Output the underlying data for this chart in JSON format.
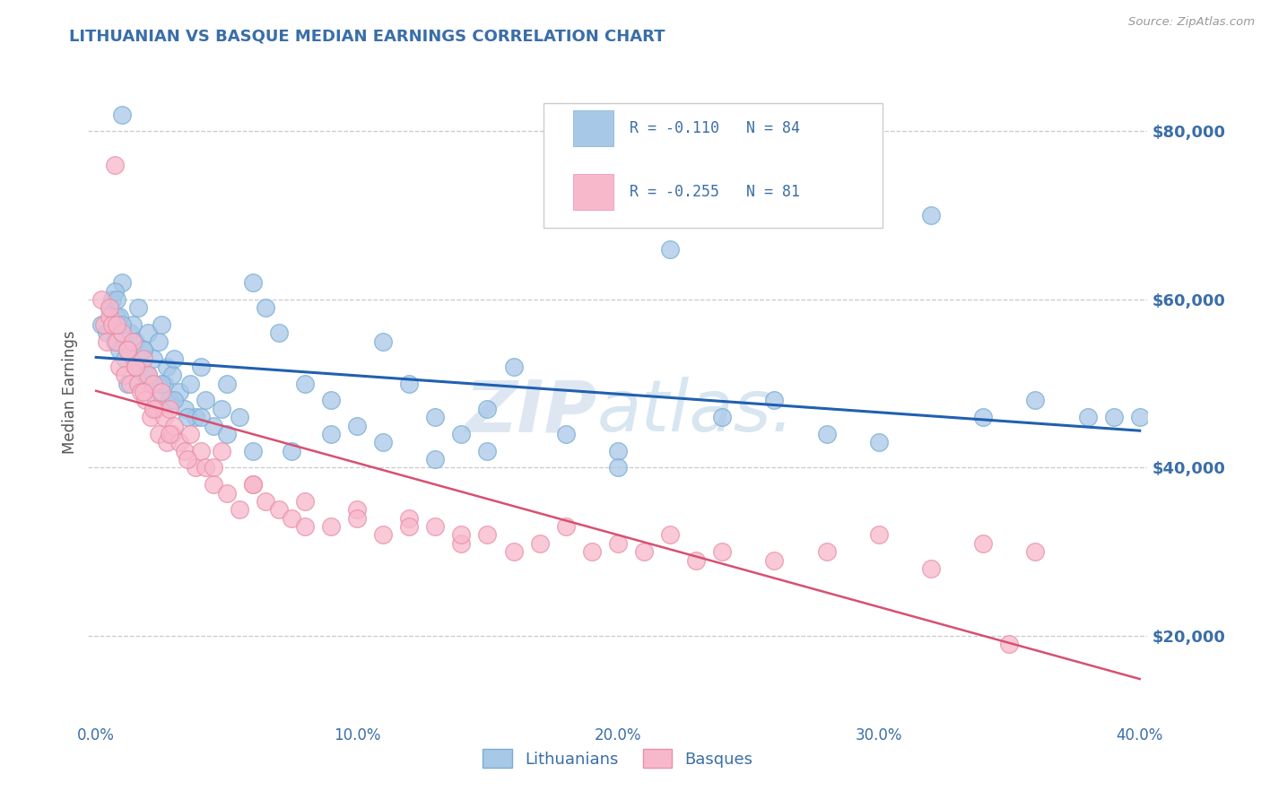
{
  "title": "LITHUANIAN VS BASQUE MEDIAN EARNINGS CORRELATION CHART",
  "source_text": "Source: ZipAtlas.com",
  "ylabel": "Median Earnings",
  "xlim": [
    -0.003,
    0.403
  ],
  "ylim": [
    10000,
    88000
  ],
  "yticks": [
    20000,
    40000,
    60000,
    80000
  ],
  "ytick_labels": [
    "$20,000",
    "$40,000",
    "$60,000",
    "$80,000"
  ],
  "xticks": [
    0.0,
    0.1,
    0.2,
    0.3,
    0.4
  ],
  "xtick_labels": [
    "0.0%",
    "10.0%",
    "20.0%",
    "30.0%",
    "40.0%"
  ],
  "series1_name": "Lithuanians",
  "series1_color": "#a8c8e8",
  "series1_edge_color": "#7aaed4",
  "series1_line_color": "#2060b0",
  "series1_R": -0.11,
  "series1_N": 84,
  "series2_name": "Basques",
  "series2_color": "#f8b8cc",
  "series2_edge_color": "#e890a8",
  "series2_line_color": "#d85070",
  "series2_R": -0.255,
  "series2_N": 81,
  "title_color": "#3a6ea8",
  "axis_label_color": "#3a6ea8",
  "tick_color": "#3a6ea8",
  "grid_color": "#c8c8d0",
  "background_color": "#ffffff",
  "watermark_text": "ZIPatlas.",
  "scatter1_x": [
    0.002,
    0.004,
    0.005,
    0.006,
    0.007,
    0.008,
    0.009,
    0.01,
    0.01,
    0.011,
    0.012,
    0.013,
    0.014,
    0.015,
    0.016,
    0.017,
    0.018,
    0.019,
    0.02,
    0.021,
    0.022,
    0.023,
    0.024,
    0.025,
    0.026,
    0.027,
    0.028,
    0.029,
    0.03,
    0.032,
    0.034,
    0.036,
    0.038,
    0.04,
    0.042,
    0.045,
    0.048,
    0.05,
    0.055,
    0.06,
    0.065,
    0.07,
    0.08,
    0.09,
    0.1,
    0.11,
    0.12,
    0.13,
    0.14,
    0.15,
    0.16,
    0.18,
    0.2,
    0.22,
    0.24,
    0.26,
    0.28,
    0.3,
    0.32,
    0.34,
    0.36,
    0.38,
    0.39,
    0.4,
    0.007,
    0.008,
    0.009,
    0.01,
    0.012,
    0.015,
    0.018,
    0.02,
    0.025,
    0.03,
    0.035,
    0.04,
    0.05,
    0.06,
    0.075,
    0.09,
    0.11,
    0.13,
    0.15,
    0.2
  ],
  "scatter1_y": [
    57000,
    56000,
    59000,
    60000,
    55000,
    58000,
    54000,
    82000,
    62000,
    53000,
    50000,
    56000,
    57000,
    55000,
    59000,
    52000,
    54000,
    51000,
    56000,
    50000,
    53000,
    48000,
    55000,
    57000,
    50000,
    52000,
    48000,
    51000,
    53000,
    49000,
    47000,
    50000,
    46000,
    52000,
    48000,
    45000,
    47000,
    50000,
    46000,
    62000,
    59000,
    56000,
    50000,
    48000,
    45000,
    55000,
    50000,
    46000,
    44000,
    47000,
    52000,
    44000,
    42000,
    66000,
    46000,
    48000,
    44000,
    43000,
    70000,
    46000,
    48000,
    46000,
    46000,
    46000,
    61000,
    60000,
    58000,
    57000,
    54000,
    52000,
    54000,
    51000,
    50000,
    48000,
    46000,
    46000,
    44000,
    42000,
    42000,
    44000,
    43000,
    41000,
    42000,
    40000
  ],
  "scatter2_x": [
    0.002,
    0.003,
    0.004,
    0.005,
    0.006,
    0.007,
    0.008,
    0.009,
    0.01,
    0.011,
    0.012,
    0.013,
    0.014,
    0.015,
    0.016,
    0.017,
    0.018,
    0.019,
    0.02,
    0.021,
    0.022,
    0.023,
    0.024,
    0.025,
    0.026,
    0.027,
    0.028,
    0.029,
    0.03,
    0.032,
    0.034,
    0.036,
    0.038,
    0.04,
    0.042,
    0.045,
    0.048,
    0.05,
    0.055,
    0.06,
    0.065,
    0.07,
    0.075,
    0.08,
    0.09,
    0.1,
    0.11,
    0.12,
    0.13,
    0.14,
    0.15,
    0.16,
    0.17,
    0.18,
    0.19,
    0.2,
    0.21,
    0.22,
    0.23,
    0.24,
    0.26,
    0.28,
    0.3,
    0.32,
    0.34,
    0.36,
    0.005,
    0.008,
    0.012,
    0.015,
    0.018,
    0.022,
    0.028,
    0.035,
    0.045,
    0.06,
    0.08,
    0.1,
    0.12,
    0.14,
    0.35
  ],
  "scatter2_y": [
    60000,
    57000,
    55000,
    58000,
    57000,
    76000,
    55000,
    52000,
    56000,
    51000,
    54000,
    50000,
    55000,
    52000,
    50000,
    49000,
    53000,
    48000,
    51000,
    46000,
    50000,
    47000,
    44000,
    49000,
    46000,
    43000,
    47000,
    44000,
    45000,
    43000,
    42000,
    44000,
    40000,
    42000,
    40000,
    38000,
    42000,
    37000,
    35000,
    38000,
    36000,
    35000,
    34000,
    33000,
    33000,
    35000,
    32000,
    34000,
    33000,
    31000,
    32000,
    30000,
    31000,
    33000,
    30000,
    31000,
    30000,
    32000,
    29000,
    30000,
    29000,
    30000,
    32000,
    28000,
    31000,
    30000,
    59000,
    57000,
    54000,
    52000,
    49000,
    47000,
    44000,
    41000,
    40000,
    38000,
    36000,
    34000,
    33000,
    32000,
    19000
  ]
}
